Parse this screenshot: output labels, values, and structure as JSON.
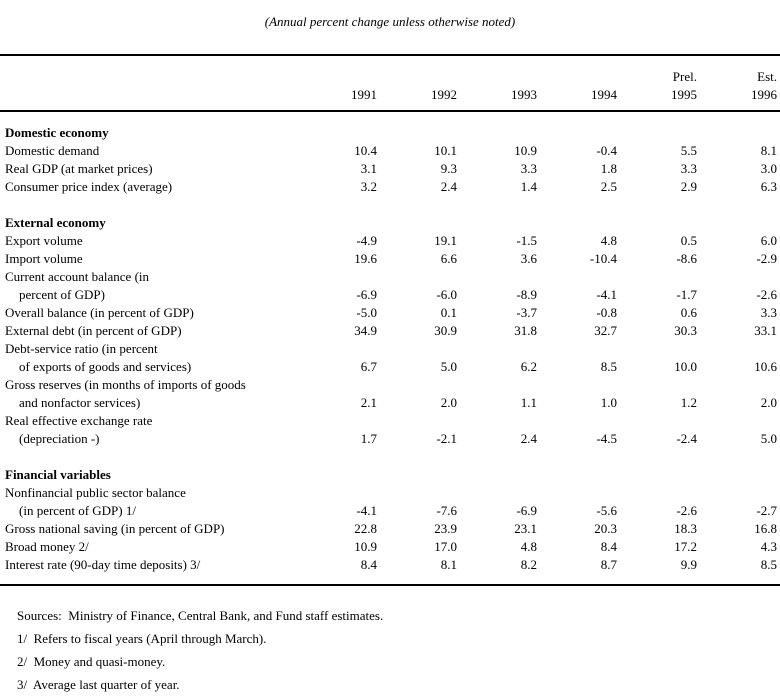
{
  "title": "(Annual percent change unless otherwise noted)",
  "colors": {
    "text": "#000000",
    "background": "#ffffff",
    "rule": "#000000"
  },
  "columns": {
    "prel_label": "Prel.",
    "est_label": "Est.",
    "years": [
      "1991",
      "1992",
      "1993",
      "1994",
      "1995",
      "1996"
    ]
  },
  "sections": [
    {
      "heading": "Domestic economy",
      "rows": [
        {
          "lines": [
            "Domestic demand"
          ],
          "values": [
            "10.4",
            "10.1",
            "10.9",
            "-0.4",
            "5.5",
            "8.1"
          ]
        },
        {
          "lines": [
            "Real GDP (at market prices)"
          ],
          "values": [
            "3.1",
            "9.3",
            "3.3",
            "1.8",
            "3.3",
            "3.0"
          ]
        },
        {
          "lines": [
            "Consumer price index (average)"
          ],
          "values": [
            "3.2",
            "2.4",
            "1.4",
            "2.5",
            "2.9",
            "6.3"
          ]
        }
      ]
    },
    {
      "heading": "External economy",
      "rows": [
        {
          "lines": [
            "Export volume"
          ],
          "values": [
            "-4.9",
            "19.1",
            "-1.5",
            "4.8",
            "0.5",
            "6.0"
          ]
        },
        {
          "lines": [
            "Import volume"
          ],
          "values": [
            "19.6",
            "6.6",
            "3.6",
            "-10.4",
            "-8.6",
            "-2.9"
          ]
        },
        {
          "lines": [
            "Current account balance (in",
            "percent of GDP)"
          ],
          "values": [
            "-6.9",
            "-6.0",
            "-8.9",
            "-4.1",
            "-1.7",
            "-2.6"
          ]
        },
        {
          "lines": [
            "Overall balance (in percent of GDP)"
          ],
          "values": [
            "-5.0",
            "0.1",
            "-3.7",
            "-0.8",
            "0.6",
            "3.3"
          ]
        },
        {
          "lines": [
            "External debt (in percent of GDP)"
          ],
          "values": [
            "34.9",
            "30.9",
            "31.8",
            "32.7",
            "30.3",
            "33.1"
          ]
        },
        {
          "lines": [
            "Debt-service ratio (in percent",
            "of exports of goods and services)"
          ],
          "values": [
            "6.7",
            "5.0",
            "6.2",
            "8.5",
            "10.0",
            "10.6"
          ]
        },
        {
          "lines": [
            "Gross reserves (in months of imports of goods",
            "and nonfactor services)"
          ],
          "values": [
            "2.1",
            "2.0",
            "1.1",
            "1.0",
            "1.2",
            "2.0"
          ]
        },
        {
          "lines": [
            "Real effective exchange rate",
            "(depreciation -)"
          ],
          "values": [
            "1.7",
            "-2.1",
            "2.4",
            "-4.5",
            "-2.4",
            "5.0"
          ]
        }
      ]
    },
    {
      "heading": "Financial variables",
      "rows": [
        {
          "lines": [
            "Nonfinancial public sector balance",
            "(in percent of GDP) 1/"
          ],
          "values": [
            "-4.1",
            "-7.6",
            "-6.9",
            "-5.6",
            "-2.6",
            "-2.7"
          ]
        },
        {
          "lines": [
            "Gross national saving (in percent of GDP)"
          ],
          "values": [
            "22.8",
            "23.9",
            "23.1",
            "20.3",
            "18.3",
            "16.8"
          ]
        },
        {
          "lines": [
            "Broad money 2/"
          ],
          "values": [
            "10.9",
            "17.0",
            "4.8",
            "8.4",
            "17.2",
            "4.3"
          ]
        },
        {
          "lines": [
            "Interest rate (90-day time deposits) 3/"
          ],
          "values": [
            "8.4",
            "8.1",
            "8.2",
            "8.7",
            "9.9",
            "8.5"
          ]
        }
      ]
    }
  ],
  "footer": {
    "sources": "Sources:  Ministry of Finance, Central Bank, and Fund staff estimates.",
    "footnotes": [
      "1/  Refers to fiscal years (April through March).",
      "2/  Money and quasi-money.",
      "3/  Average last quarter of year."
    ]
  }
}
